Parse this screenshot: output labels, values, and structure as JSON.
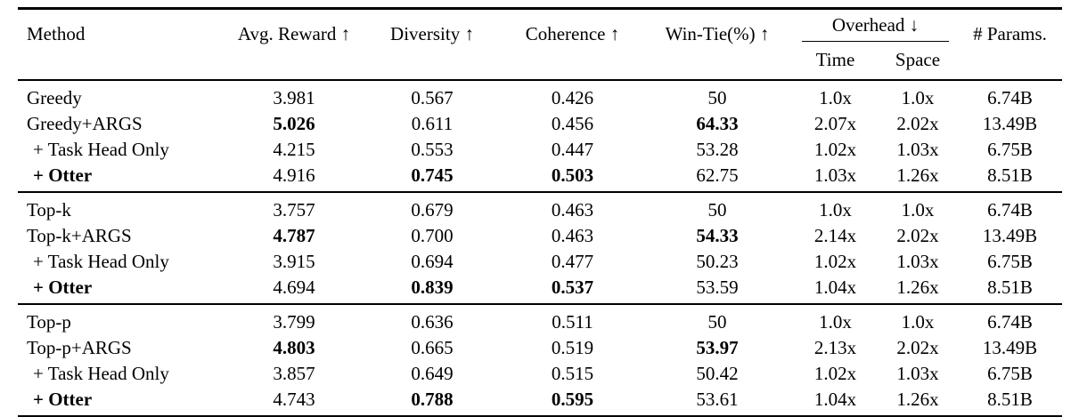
{
  "page": {
    "background_color": "#ffffff",
    "text_color": "#000000"
  },
  "table": {
    "header": {
      "method": "Method",
      "avg_reward": "Avg. Reward ↑",
      "diversity": "Diversity ↑",
      "coherence": "Coherence ↑",
      "win_tie": "Win-Tie(%) ↑",
      "overhead": "Overhead ↓",
      "time": "Time",
      "space": "Space",
      "params": "# Params."
    },
    "groups": [
      {
        "rows": [
          {
            "method": {
              "v": "Greedy",
              "b": false,
              "indent": false
            },
            "cells": [
              {
                "v": "3.981"
              },
              {
                "v": "0.567"
              },
              {
                "v": "0.426"
              },
              {
                "v": "50"
              },
              {
                "v": "1.0x"
              },
              {
                "v": "1.0x"
              },
              {
                "v": "6.74B"
              }
            ]
          },
          {
            "method": {
              "v": "Greedy+ARGS",
              "b": false,
              "indent": false
            },
            "cells": [
              {
                "v": "5.026",
                "b": true
              },
              {
                "v": "0.611"
              },
              {
                "v": "0.456"
              },
              {
                "v": "64.33",
                "b": true
              },
              {
                "v": "2.07x"
              },
              {
                "v": "2.02x"
              },
              {
                "v": "13.49B"
              }
            ]
          },
          {
            "method": {
              "v": "+ Task Head Only",
              "b": false,
              "indent": true
            },
            "cells": [
              {
                "v": "4.215"
              },
              {
                "v": "0.553"
              },
              {
                "v": "0.447"
              },
              {
                "v": "53.28"
              },
              {
                "v": "1.02x"
              },
              {
                "v": "1.03x"
              },
              {
                "v": "6.75B"
              }
            ]
          },
          {
            "method": {
              "v": "+ Otter",
              "b": true,
              "indent": true
            },
            "cells": [
              {
                "v": "4.916"
              },
              {
                "v": "0.745",
                "b": true
              },
              {
                "v": "0.503",
                "b": true
              },
              {
                "v": "62.75"
              },
              {
                "v": "1.03x"
              },
              {
                "v": "1.26x"
              },
              {
                "v": "8.51B"
              }
            ]
          }
        ]
      },
      {
        "rows": [
          {
            "method": {
              "v": "Top-k",
              "b": false,
              "indent": false
            },
            "cells": [
              {
                "v": "3.757"
              },
              {
                "v": "0.679"
              },
              {
                "v": "0.463"
              },
              {
                "v": "50"
              },
              {
                "v": "1.0x"
              },
              {
                "v": "1.0x"
              },
              {
                "v": "6.74B"
              }
            ]
          },
          {
            "method": {
              "v": "Top-k+ARGS",
              "b": false,
              "indent": false
            },
            "cells": [
              {
                "v": "4.787",
                "b": true
              },
              {
                "v": "0.700"
              },
              {
                "v": "0.463"
              },
              {
                "v": "54.33",
                "b": true
              },
              {
                "v": "2.14x"
              },
              {
                "v": "2.02x"
              },
              {
                "v": "13.49B"
              }
            ]
          },
          {
            "method": {
              "v": "+ Task Head Only",
              "b": false,
              "indent": true
            },
            "cells": [
              {
                "v": "3.915"
              },
              {
                "v": "0.694"
              },
              {
                "v": "0.477"
              },
              {
                "v": "50.23"
              },
              {
                "v": "1.02x"
              },
              {
                "v": "1.03x"
              },
              {
                "v": "6.75B"
              }
            ]
          },
          {
            "method": {
              "v": "+ Otter",
              "b": true,
              "indent": true
            },
            "cells": [
              {
                "v": "4.694"
              },
              {
                "v": "0.839",
                "b": true
              },
              {
                "v": "0.537",
                "b": true
              },
              {
                "v": "53.59"
              },
              {
                "v": "1.04x"
              },
              {
                "v": "1.26x"
              },
              {
                "v": "8.51B"
              }
            ]
          }
        ]
      },
      {
        "rows": [
          {
            "method": {
              "v": "Top-p",
              "b": false,
              "indent": false
            },
            "cells": [
              {
                "v": "3.799"
              },
              {
                "v": "0.636"
              },
              {
                "v": "0.511"
              },
              {
                "v": "50"
              },
              {
                "v": "1.0x"
              },
              {
                "v": "1.0x"
              },
              {
                "v": "6.74B"
              }
            ]
          },
          {
            "method": {
              "v": "Top-p+ARGS",
              "b": false,
              "indent": false
            },
            "cells": [
              {
                "v": "4.803",
                "b": true
              },
              {
                "v": "0.665"
              },
              {
                "v": "0.519"
              },
              {
                "v": "53.97",
                "b": true
              },
              {
                "v": "2.13x"
              },
              {
                "v": "2.02x"
              },
              {
                "v": "13.49B"
              }
            ]
          },
          {
            "method": {
              "v": "+ Task Head Only",
              "b": false,
              "indent": true
            },
            "cells": [
              {
                "v": "3.857"
              },
              {
                "v": "0.649"
              },
              {
                "v": "0.515"
              },
              {
                "v": "50.42"
              },
              {
                "v": "1.02x"
              },
              {
                "v": "1.03x"
              },
              {
                "v": "6.75B"
              }
            ]
          },
          {
            "method": {
              "v": "+ Otter",
              "b": true,
              "indent": true
            },
            "cells": [
              {
                "v": "4.743"
              },
              {
                "v": "0.788",
                "b": true
              },
              {
                "v": "0.595",
                "b": true
              },
              {
                "v": "53.61"
              },
              {
                "v": "1.04x"
              },
              {
                "v": "1.26x"
              },
              {
                "v": "8.51B"
              }
            ]
          }
        ]
      }
    ]
  }
}
